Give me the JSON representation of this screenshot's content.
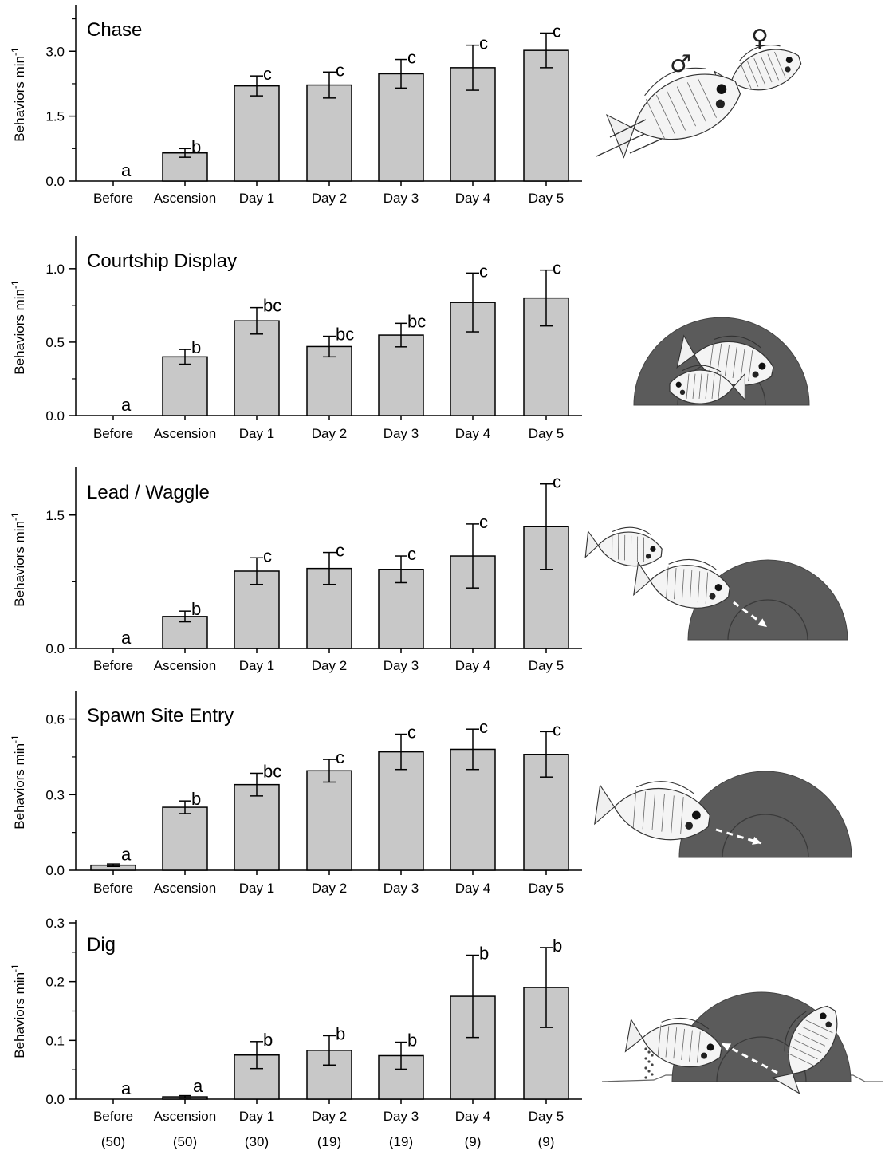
{
  "y_axis_label": "Behaviors min",
  "y_axis_label_sup": "-1",
  "sample_sizes": [
    "(50)",
    "(50)",
    "(30)",
    "(19)",
    "(19)",
    "(9)",
    "(9)"
  ],
  "chart_data": [
    {
      "type": "bar",
      "title": "Chase",
      "categories": [
        "Before",
        "Ascension",
        "Day 1",
        "Day 2",
        "Day 3",
        "Day 4",
        "Day 5"
      ],
      "values": [
        0.0,
        0.65,
        2.2,
        2.22,
        2.48,
        2.62,
        3.02
      ],
      "errors": [
        0.0,
        0.1,
        0.23,
        0.3,
        0.33,
        0.52,
        0.4
      ],
      "significance": [
        "a",
        "b",
        "c",
        "c",
        "c",
        "c",
        "c"
      ],
      "ylim": [
        0,
        4.0
      ],
      "yticks": [
        "0.0",
        "1.5",
        "3.0"
      ],
      "ylabel": "Behaviors min-1",
      "illustration": "male-chasing-female-fish",
      "symbols": [
        "♂",
        "♀"
      ],
      "colors": {
        "bar": "#c8c8c8",
        "edge": "#000000"
      }
    },
    {
      "type": "bar",
      "title": "Courtship Display",
      "categories": [
        "Before",
        "Ascension",
        "Day 1",
        "Day 2",
        "Day 3",
        "Day 4",
        "Day 5"
      ],
      "values": [
        0.0,
        0.4,
        0.645,
        0.47,
        0.548,
        0.77,
        0.8
      ],
      "errors": [
        0.0,
        0.05,
        0.09,
        0.07,
        0.08,
        0.2,
        0.19
      ],
      "significance": [
        "a",
        "b",
        "bc",
        "bc",
        "bc",
        "c",
        "c"
      ],
      "ylim": [
        0,
        1.2
      ],
      "yticks": [
        "0.0",
        "0.5",
        "1.0"
      ],
      "ylabel": "Behaviors min-1",
      "illustration": "courtship-display-at-spawning-site",
      "colors": {
        "bar": "#c8c8c8",
        "edge": "#000000"
      }
    },
    {
      "type": "bar",
      "title": "Lead / Waggle",
      "categories": [
        "Before",
        "Ascension",
        "Day 1",
        "Day 2",
        "Day 3",
        "Day 4",
        "Day 5"
      ],
      "values": [
        0.0,
        0.36,
        0.87,
        0.9,
        0.89,
        1.04,
        1.37
      ],
      "errors": [
        0.0,
        0.06,
        0.15,
        0.18,
        0.15,
        0.36,
        0.48
      ],
      "significance": [
        "a",
        "b",
        "c",
        "c",
        "c",
        "c",
        "c"
      ],
      "ylim": [
        0,
        2.0
      ],
      "yticks": [
        "0.0",
        "1.5"
      ],
      "ylabel": "Behaviors min-1",
      "illustration": "male-leading-female-to-spawning-site",
      "colors": {
        "bar": "#c8c8c8",
        "edge": "#000000"
      }
    },
    {
      "type": "bar",
      "title": "Spawn Site Entry",
      "categories": [
        "Before",
        "Ascension",
        "Day 1",
        "Day 2",
        "Day 3",
        "Day 4",
        "Day 5"
      ],
      "values": [
        0.02,
        0.25,
        0.34,
        0.395,
        0.47,
        0.48,
        0.46
      ],
      "errors": [
        0.005,
        0.025,
        0.045,
        0.045,
        0.07,
        0.08,
        0.09
      ],
      "significance": [
        "a",
        "b",
        "bc",
        "c",
        "c",
        "c",
        "c"
      ],
      "ylim": [
        0,
        0.7
      ],
      "yticks": [
        "0.0",
        "0.3",
        "0.6"
      ],
      "ylabel": "Behaviors min-1",
      "illustration": "male-entering-spawning-site",
      "colors": {
        "bar": "#c8c8c8",
        "edge": "#000000"
      }
    },
    {
      "type": "bar",
      "title": "Dig",
      "categories": [
        "Before",
        "Ascension",
        "Day 1",
        "Day 2",
        "Day 3",
        "Day 4",
        "Day 5"
      ],
      "values": [
        0.0,
        0.004,
        0.075,
        0.083,
        0.074,
        0.175,
        0.19
      ],
      "errors": [
        0.0,
        0.002,
        0.023,
        0.025,
        0.023,
        0.07,
        0.068
      ],
      "significance": [
        "a",
        "a",
        "b",
        "b",
        "b",
        "b",
        "b"
      ],
      "ylim": [
        0,
        0.3
      ],
      "yticks": [
        "0.0",
        "0.1",
        "0.2",
        "0.3"
      ],
      "ylabel": "Behaviors min-1",
      "illustration": "male-digging-at-spawning-site",
      "colors": {
        "bar": "#c8c8c8",
        "edge": "#000000"
      }
    }
  ]
}
